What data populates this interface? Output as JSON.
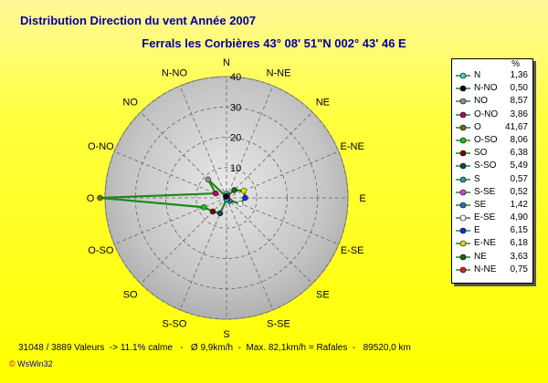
{
  "title": "Distribution Direction du vent   Année 2007",
  "subtitle": "Ferrals les Corbières 43° 08' 51\"N  002° 43' 46 E",
  "chart_data": {
    "type": "polar-line",
    "rmax": 40,
    "rings": [
      10,
      20,
      30,
      40
    ],
    "grid": true,
    "legend_placement": "right",
    "legend_header": "%",
    "directions": [
      "N",
      "N-NE",
      "NE",
      "E-NE",
      "E",
      "E-SE",
      "SE",
      "S-SE",
      "S",
      "S-SO",
      "SO",
      "O-SO",
      "O",
      "O-NO",
      "NO",
      "N-NO"
    ],
    "series": [
      {
        "name": "N",
        "value": "1,36",
        "color": "#3fd0c8"
      },
      {
        "name": "N-NO",
        "value": "0,50",
        "color": "#000000"
      },
      {
        "name": "NO",
        "value": "8,57",
        "color": "#909090"
      },
      {
        "name": "O-NO",
        "value": "3,86",
        "color": "#c00060"
      },
      {
        "name": "O",
        "value": "41,67",
        "color": "#7a6a20"
      },
      {
        "name": "O-SO",
        "value": "8,06",
        "color": "#20c020"
      },
      {
        "name": "SO",
        "value": "6,38",
        "color": "#800000"
      },
      {
        "name": "S-SO",
        "value": "5,49",
        "color": "#204060"
      },
      {
        "name": "S",
        "value": "0,57",
        "color": "#20a0a0"
      },
      {
        "name": "S-SE",
        "value": "0,52",
        "color": "#e040e0"
      },
      {
        "name": "SE",
        "value": "1,42",
        "color": "#3070c0"
      },
      {
        "name": "E-SE",
        "value": "4,90",
        "color": "#ffffff"
      },
      {
        "name": "E",
        "value": "6,15",
        "color": "#1030e0"
      },
      {
        "name": "E-NE",
        "value": "6,18",
        "color": "#e0e000"
      },
      {
        "name": "NE",
        "value": "3,63",
        "color": "#206020"
      },
      {
        "name": "N-NE",
        "value": "0,75",
        "color": "#e02020"
      }
    ]
  },
  "footer": "31048 / 3889 Valeurs  -> 11.1% calme   -   Ø 9,9km/h  -  Max. 82,1km/h = Rafales  -   89520,0 km",
  "brand": {
    "mark": "©",
    "name": " WsWin32"
  }
}
